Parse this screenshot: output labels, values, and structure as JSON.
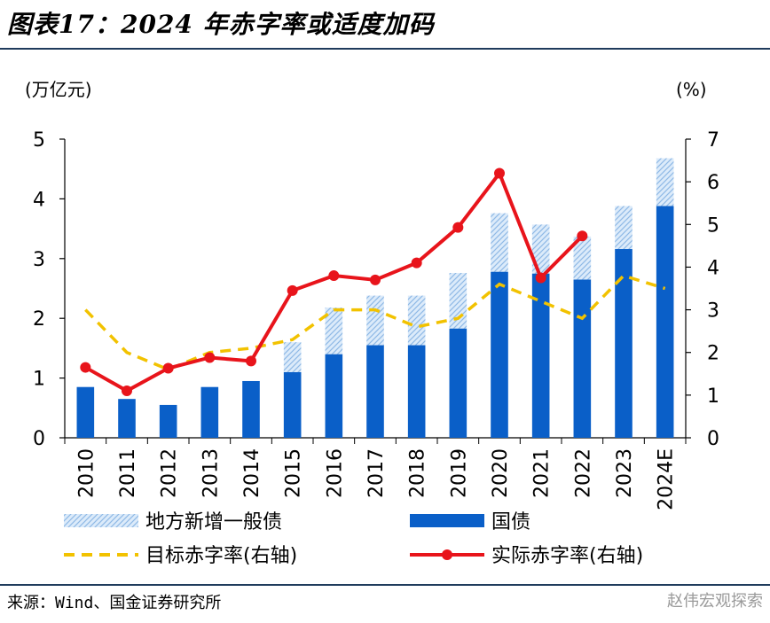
{
  "title": "图表17：2024 年赤字率或适度加码",
  "source": "来源：Wind、国金证券研究所",
  "watermark": "赵伟宏观探索",
  "chart_data": {
    "type": "bar",
    "categories": [
      "2010",
      "2011",
      "2012",
      "2013",
      "2014",
      "2015",
      "2016",
      "2017",
      "2018",
      "2019",
      "2020",
      "2021",
      "2022",
      "2023",
      "2024E"
    ],
    "left_axis_label": "(万亿元)",
    "right_axis_label": "(%)",
    "ylim": [
      0,
      5
    ],
    "y2lim": [
      0,
      7
    ],
    "yticks": [
      0,
      1,
      2,
      3,
      4,
      5
    ],
    "y2ticks": [
      0,
      1,
      2,
      3,
      4,
      5,
      6,
      7
    ],
    "stacked_bars": [
      {
        "name": "国债",
        "color": "#0a5fc8",
        "pattern": "solid",
        "values": [
          0.85,
          0.65,
          0.55,
          0.85,
          0.95,
          1.1,
          1.4,
          1.55,
          1.55,
          1.83,
          2.78,
          2.75,
          2.65,
          3.16,
          3.88
        ]
      },
      {
        "name": "地方新增一般债",
        "color": "#bcd7f2",
        "pattern": "hatched",
        "values": [
          0,
          0,
          0,
          0,
          0,
          0.5,
          0.78,
          0.83,
          0.83,
          0.93,
          0.98,
          0.82,
          0.72,
          0.72,
          0.8
        ]
      }
    ],
    "lines": [
      {
        "name": "目标赤字率(右轴)",
        "color": "#f2c200",
        "style": "dashed",
        "markers": false,
        "values": [
          3.0,
          2.0,
          1.6,
          2.0,
          2.1,
          2.3,
          3.0,
          3.0,
          2.6,
          2.8,
          3.6,
          3.2,
          2.8,
          3.8,
          3.5
        ]
      },
      {
        "name": "实际赤字率(右轴)",
        "color": "#e8141b",
        "style": "solid",
        "markers": true,
        "values": [
          1.65,
          1.1,
          1.63,
          1.88,
          1.8,
          3.45,
          3.8,
          3.7,
          4.1,
          4.93,
          6.2,
          3.75,
          4.73,
          null,
          null
        ]
      }
    ],
    "legend": {
      "placement": "bottom",
      "items": [
        "地方新增一般债",
        "国债",
        "目标赤字率(右轴)",
        "实际赤字率(右轴)"
      ]
    }
  }
}
